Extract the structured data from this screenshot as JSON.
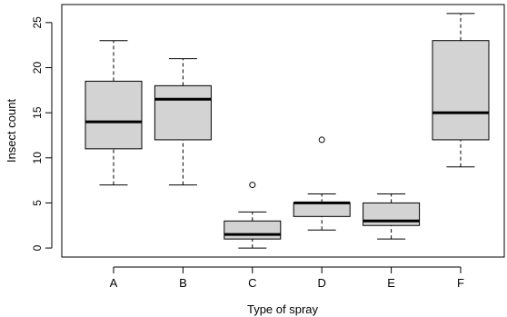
{
  "chart_data": {
    "type": "boxplot",
    "title": "",
    "xlabel": "Type of spray",
    "ylabel": "Insect count",
    "ylim": [
      -1,
      27
    ],
    "yticks": [
      0,
      5,
      10,
      15,
      20,
      25
    ],
    "box_fill": "#d3d3d3",
    "categories": [
      "A",
      "B",
      "C",
      "D",
      "E",
      "F"
    ],
    "boxes": [
      {
        "category": "A",
        "whisker_low": 7,
        "q1": 11,
        "median": 14,
        "q3": 18.5,
        "whisker_high": 23,
        "outliers": []
      },
      {
        "category": "B",
        "whisker_low": 7,
        "q1": 12,
        "median": 16.5,
        "q3": 18,
        "whisker_high": 21,
        "outliers": []
      },
      {
        "category": "C",
        "whisker_low": 0,
        "q1": 1,
        "median": 1.5,
        "q3": 3,
        "whisker_high": 4,
        "outliers": [
          7
        ]
      },
      {
        "category": "D",
        "whisker_low": 2,
        "q1": 3.5,
        "median": 5,
        "q3": 5,
        "whisker_high": 6,
        "outliers": [
          12
        ]
      },
      {
        "category": "E",
        "whisker_low": 1,
        "q1": 2.5,
        "median": 3,
        "q3": 5,
        "whisker_high": 6,
        "outliers": []
      },
      {
        "category": "F",
        "whisker_low": 9,
        "q1": 12,
        "median": 15,
        "q3": 23,
        "whisker_high": 26,
        "outliers": []
      }
    ]
  }
}
